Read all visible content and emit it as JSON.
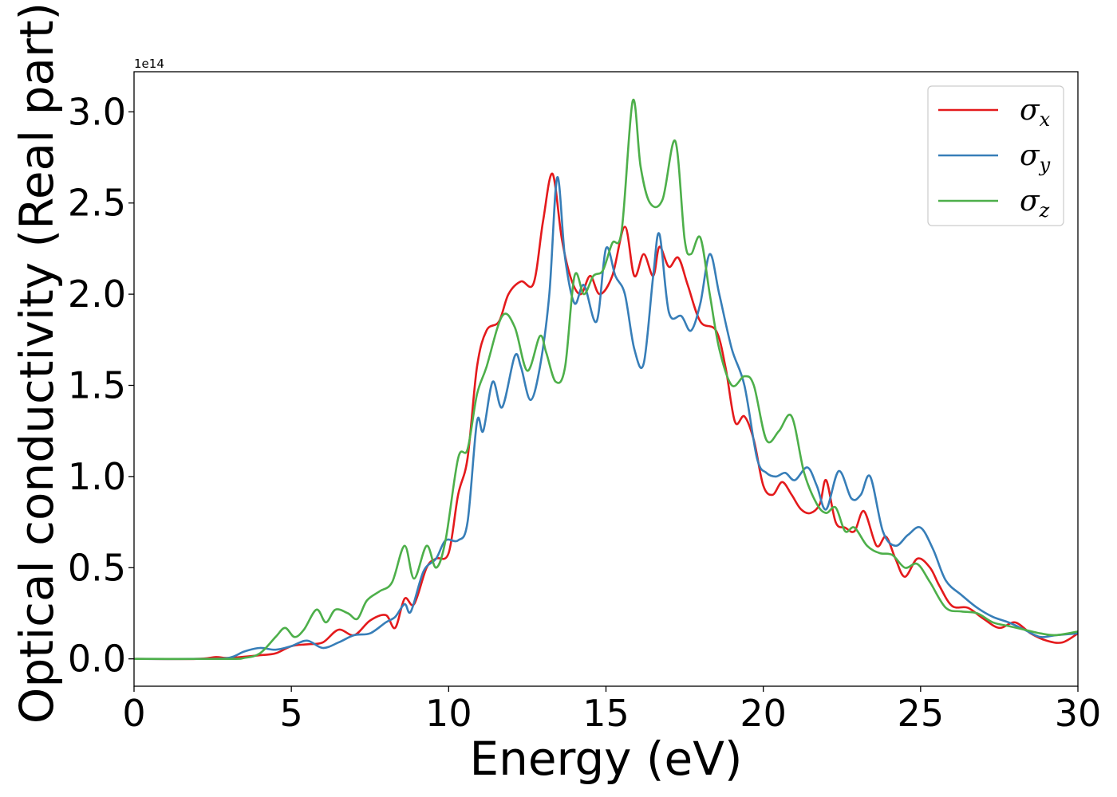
{
  "chart_data": {
    "type": "line",
    "title": "",
    "xlabel": "Energy (eV)",
    "ylabel": "Optical conductivity (Real part)",
    "y_offset_text": "1e14",
    "y_scale_factor": 100000000000000.0,
    "xlim": [
      0,
      30
    ],
    "ylim": [
      -0.15,
      3.22
    ],
    "xticks": [
      0,
      5,
      10,
      15,
      20,
      25,
      30
    ],
    "xtick_labels": [
      "0",
      "5",
      "10",
      "15",
      "20",
      "25",
      "30"
    ],
    "yticks": [
      0.0,
      0.5,
      1.0,
      1.5,
      2.0,
      2.5,
      3.0
    ],
    "ytick_labels": [
      "0.0",
      "0.5",
      "1.0",
      "1.5",
      "2.0",
      "2.5",
      "3.0"
    ],
    "grid": false,
    "legend_position": "upper-right",
    "series": [
      {
        "name": "σx",
        "symbol": "σ",
        "subscript": "x",
        "color": "#e41a1c",
        "points": [
          [
            0,
            0
          ],
          [
            2,
            0
          ],
          [
            2.6,
            0.01
          ],
          [
            3,
            0.005
          ],
          [
            4,
            0.02
          ],
          [
            4.5,
            0.03
          ],
          [
            5,
            0.07
          ],
          [
            5.5,
            0.08
          ],
          [
            6,
            0.09
          ],
          [
            6.5,
            0.16
          ],
          [
            7,
            0.13
          ],
          [
            7.5,
            0.21
          ],
          [
            8,
            0.24
          ],
          [
            8.3,
            0.17
          ],
          [
            8.6,
            0.33
          ],
          [
            8.9,
            0.3
          ],
          [
            9.3,
            0.5
          ],
          [
            9.6,
            0.55
          ],
          [
            10,
            0.58
          ],
          [
            10.3,
            0.9
          ],
          [
            10.6,
            1.1
          ],
          [
            10.9,
            1.6
          ],
          [
            11.2,
            1.8
          ],
          [
            11.6,
            1.85
          ],
          [
            11.9,
            2.0
          ],
          [
            12.3,
            2.07
          ],
          [
            12.7,
            2.06
          ],
          [
            13.0,
            2.4
          ],
          [
            13.3,
            2.66
          ],
          [
            13.6,
            2.3
          ],
          [
            13.9,
            2.08
          ],
          [
            14.2,
            2.0
          ],
          [
            14.5,
            2.1
          ],
          [
            14.8,
            2.0
          ],
          [
            15.2,
            2.1
          ],
          [
            15.6,
            2.37
          ],
          [
            15.9,
            2.1
          ],
          [
            16.2,
            2.22
          ],
          [
            16.5,
            2.1
          ],
          [
            16.7,
            2.26
          ],
          [
            17.0,
            2.15
          ],
          [
            17.3,
            2.2
          ],
          [
            17.6,
            2.05
          ],
          [
            18.0,
            1.85
          ],
          [
            18.5,
            1.8
          ],
          [
            18.8,
            1.6
          ],
          [
            19.1,
            1.3
          ],
          [
            19.4,
            1.33
          ],
          [
            19.7,
            1.2
          ],
          [
            20.0,
            0.95
          ],
          [
            20.3,
            0.9
          ],
          [
            20.6,
            0.97
          ],
          [
            20.9,
            0.9
          ],
          [
            21.2,
            0.82
          ],
          [
            21.5,
            0.8
          ],
          [
            21.8,
            0.85
          ],
          [
            22.0,
            0.98
          ],
          [
            22.3,
            0.75
          ],
          [
            22.6,
            0.72
          ],
          [
            22.9,
            0.7
          ],
          [
            23.2,
            0.81
          ],
          [
            23.6,
            0.62
          ],
          [
            23.9,
            0.67
          ],
          [
            24.2,
            0.55
          ],
          [
            24.5,
            0.45
          ],
          [
            24.9,
            0.55
          ],
          [
            25.3,
            0.5
          ],
          [
            25.6,
            0.4
          ],
          [
            26.0,
            0.29
          ],
          [
            26.5,
            0.28
          ],
          [
            27.0,
            0.22
          ],
          [
            27.5,
            0.17
          ],
          [
            28.0,
            0.2
          ],
          [
            28.5,
            0.14
          ],
          [
            29.0,
            0.1
          ],
          [
            29.5,
            0.09
          ],
          [
            30,
            0.14
          ]
        ]
      },
      {
        "name": "σy",
        "symbol": "σ",
        "subscript": "y",
        "color": "#377eb8",
        "points": [
          [
            0,
            0
          ],
          [
            2,
            0
          ],
          [
            3,
            0.005
          ],
          [
            3.5,
            0.04
          ],
          [
            4,
            0.06
          ],
          [
            4.5,
            0.05
          ],
          [
            5,
            0.07
          ],
          [
            5.5,
            0.1
          ],
          [
            6,
            0.06
          ],
          [
            6.5,
            0.09
          ],
          [
            7,
            0.13
          ],
          [
            7.5,
            0.14
          ],
          [
            8,
            0.2
          ],
          [
            8.3,
            0.23
          ],
          [
            8.6,
            0.3
          ],
          [
            8.8,
            0.26
          ],
          [
            9.2,
            0.48
          ],
          [
            9.6,
            0.55
          ],
          [
            9.9,
            0.65
          ],
          [
            10.3,
            0.65
          ],
          [
            10.6,
            0.75
          ],
          [
            10.9,
            1.3
          ],
          [
            11.1,
            1.25
          ],
          [
            11.4,
            1.52
          ],
          [
            11.7,
            1.38
          ],
          [
            12.1,
            1.66
          ],
          [
            12.3,
            1.6
          ],
          [
            12.6,
            1.42
          ],
          [
            12.9,
            1.6
          ],
          [
            13.2,
            2.0
          ],
          [
            13.45,
            2.64
          ],
          [
            13.7,
            2.2
          ],
          [
            14.0,
            1.95
          ],
          [
            14.3,
            2.05
          ],
          [
            14.7,
            1.85
          ],
          [
            15.0,
            2.25
          ],
          [
            15.3,
            2.1
          ],
          [
            15.6,
            2.0
          ],
          [
            15.9,
            1.7
          ],
          [
            16.2,
            1.62
          ],
          [
            16.5,
            2.1
          ],
          [
            16.7,
            2.33
          ],
          [
            17.0,
            1.9
          ],
          [
            17.4,
            1.88
          ],
          [
            17.7,
            1.8
          ],
          [
            18.0,
            1.95
          ],
          [
            18.3,
            2.22
          ],
          [
            18.6,
            2.0
          ],
          [
            19.0,
            1.7
          ],
          [
            19.4,
            1.5
          ],
          [
            19.8,
            1.1
          ],
          [
            20.1,
            1.02
          ],
          [
            20.4,
            1.0
          ],
          [
            20.7,
            1.02
          ],
          [
            21.0,
            0.98
          ],
          [
            21.4,
            1.05
          ],
          [
            21.7,
            0.95
          ],
          [
            22.0,
            0.82
          ],
          [
            22.4,
            1.03
          ],
          [
            22.8,
            0.88
          ],
          [
            23.1,
            0.9
          ],
          [
            23.4,
            1.0
          ],
          [
            23.8,
            0.7
          ],
          [
            24.2,
            0.62
          ],
          [
            24.6,
            0.68
          ],
          [
            25.0,
            0.72
          ],
          [
            25.4,
            0.6
          ],
          [
            25.8,
            0.43
          ],
          [
            26.3,
            0.35
          ],
          [
            26.8,
            0.28
          ],
          [
            27.3,
            0.23
          ],
          [
            27.8,
            0.2
          ],
          [
            28.3,
            0.16
          ],
          [
            28.8,
            0.12
          ],
          [
            29.3,
            0.13
          ],
          [
            30,
            0.14
          ]
        ]
      },
      {
        "name": "σz",
        "symbol": "σ",
        "subscript": "z",
        "color": "#4daf4a",
        "points": [
          [
            0,
            0
          ],
          [
            3,
            0
          ],
          [
            3.5,
            0.005
          ],
          [
            4,
            0.03
          ],
          [
            4.5,
            0.12
          ],
          [
            4.8,
            0.17
          ],
          [
            5.1,
            0.12
          ],
          [
            5.4,
            0.16
          ],
          [
            5.8,
            0.27
          ],
          [
            6.1,
            0.2
          ],
          [
            6.4,
            0.27
          ],
          [
            6.8,
            0.25
          ],
          [
            7.1,
            0.22
          ],
          [
            7.4,
            0.32
          ],
          [
            7.8,
            0.37
          ],
          [
            8.2,
            0.42
          ],
          [
            8.6,
            0.62
          ],
          [
            8.9,
            0.44
          ],
          [
            9.3,
            0.62
          ],
          [
            9.6,
            0.5
          ],
          [
            9.9,
            0.65
          ],
          [
            10.3,
            1.1
          ],
          [
            10.6,
            1.15
          ],
          [
            10.9,
            1.45
          ],
          [
            11.2,
            1.6
          ],
          [
            11.7,
            1.88
          ],
          [
            12.1,
            1.82
          ],
          [
            12.5,
            1.58
          ],
          [
            12.9,
            1.77
          ],
          [
            13.1,
            1.68
          ],
          [
            13.4,
            1.52
          ],
          [
            13.7,
            1.6
          ],
          [
            14.0,
            2.1
          ],
          [
            14.3,
            2.0
          ],
          [
            14.6,
            2.1
          ],
          [
            14.9,
            2.13
          ],
          [
            15.2,
            2.28
          ],
          [
            15.5,
            2.35
          ],
          [
            15.85,
            3.06
          ],
          [
            16.1,
            2.7
          ],
          [
            16.4,
            2.5
          ],
          [
            16.8,
            2.52
          ],
          [
            17.2,
            2.84
          ],
          [
            17.5,
            2.3
          ],
          [
            17.7,
            2.22
          ],
          [
            18.0,
            2.31
          ],
          [
            18.3,
            2.0
          ],
          [
            18.6,
            1.7
          ],
          [
            19.0,
            1.5
          ],
          [
            19.4,
            1.55
          ],
          [
            19.7,
            1.5
          ],
          [
            20.1,
            1.2
          ],
          [
            20.5,
            1.25
          ],
          [
            20.9,
            1.33
          ],
          [
            21.3,
            1.02
          ],
          [
            21.7,
            0.85
          ],
          [
            22.0,
            0.8
          ],
          [
            22.3,
            0.83
          ],
          [
            22.6,
            0.7
          ],
          [
            22.9,
            0.72
          ],
          [
            23.3,
            0.62
          ],
          [
            23.7,
            0.58
          ],
          [
            24.1,
            0.57
          ],
          [
            24.5,
            0.5
          ],
          [
            24.9,
            0.52
          ],
          [
            25.3,
            0.42
          ],
          [
            25.8,
            0.28
          ],
          [
            26.3,
            0.26
          ],
          [
            26.8,
            0.25
          ],
          [
            27.3,
            0.2
          ],
          [
            27.8,
            0.18
          ],
          [
            28.3,
            0.16
          ],
          [
            28.8,
            0.14
          ],
          [
            29.3,
            0.13
          ],
          [
            30,
            0.15
          ]
        ]
      }
    ]
  }
}
